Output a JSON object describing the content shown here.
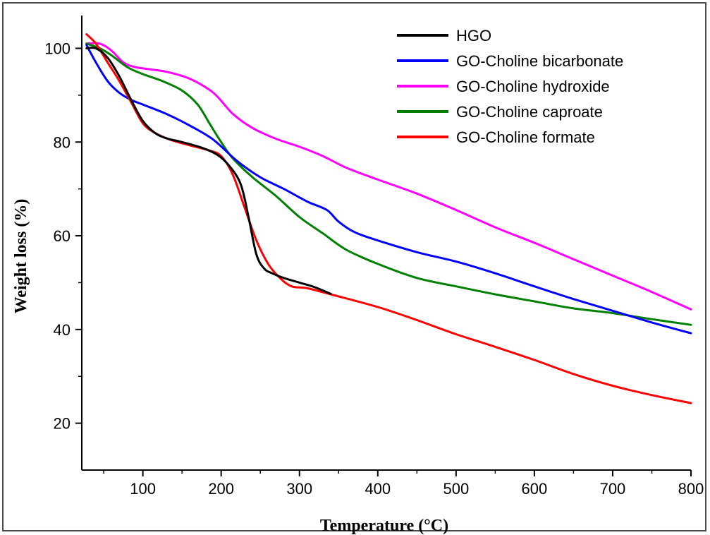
{
  "chart_data": {
    "type": "line",
    "title": "",
    "xlabel": "Temperature (°C)",
    "ylabel": "Weight loss (%)",
    "xlim": [
      22,
      800
    ],
    "ylim": [
      10,
      107
    ],
    "xticks": [
      100,
      200,
      300,
      400,
      500,
      600,
      700,
      800
    ],
    "yticks": [
      20,
      40,
      60,
      80,
      100
    ],
    "grid": false,
    "legend_position": "top-right",
    "series": [
      {
        "name": "HGO",
        "color": "#000000",
        "points": [
          [
            28,
            100
          ],
          [
            40,
            100
          ],
          [
            55,
            98
          ],
          [
            70,
            94
          ],
          [
            85,
            89
          ],
          [
            100,
            84.5
          ],
          [
            115,
            82
          ],
          [
            130,
            80.8
          ],
          [
            150,
            80
          ],
          [
            175,
            78.8
          ],
          [
            195,
            77.3
          ],
          [
            210,
            75
          ],
          [
            225,
            71
          ],
          [
            235,
            64
          ],
          [
            245,
            56
          ],
          [
            255,
            53
          ],
          [
            265,
            52
          ],
          [
            280,
            51
          ],
          [
            300,
            50
          ],
          [
            320,
            49
          ],
          [
            340,
            47.6
          ]
        ]
      },
      {
        "name": "GO-Choline bicarbonate",
        "color": "#0000ff",
        "points": [
          [
            28,
            100.7
          ],
          [
            40,
            97
          ],
          [
            55,
            93
          ],
          [
            70,
            90.5
          ],
          [
            85,
            89
          ],
          [
            100,
            88
          ],
          [
            130,
            86
          ],
          [
            160,
            83.5
          ],
          [
            190,
            80.5
          ],
          [
            220,
            76
          ],
          [
            250,
            72.5
          ],
          [
            280,
            70
          ],
          [
            310,
            67.3
          ],
          [
            335,
            65.5
          ],
          [
            350,
            63
          ],
          [
            370,
            60.8
          ],
          [
            400,
            59
          ],
          [
            450,
            56.5
          ],
          [
            500,
            54.5
          ],
          [
            550,
            52
          ],
          [
            600,
            49.2
          ],
          [
            650,
            46.5
          ],
          [
            700,
            44
          ],
          [
            750,
            41.5
          ],
          [
            800,
            39.2
          ]
        ]
      },
      {
        "name": "GO-Choline hydroxide",
        "color": "#ff00ff",
        "points": [
          [
            28,
            101
          ],
          [
            45,
            101
          ],
          [
            60,
            99.5
          ],
          [
            75,
            97
          ],
          [
            90,
            96
          ],
          [
            110,
            95.5
          ],
          [
            130,
            95
          ],
          [
            160,
            93.5
          ],
          [
            190,
            90.5
          ],
          [
            215,
            86
          ],
          [
            240,
            83
          ],
          [
            270,
            80.7
          ],
          [
            300,
            79
          ],
          [
            330,
            77
          ],
          [
            360,
            74.5
          ],
          [
            400,
            72
          ],
          [
            450,
            69
          ],
          [
            500,
            65.5
          ],
          [
            550,
            61.8
          ],
          [
            600,
            58.5
          ],
          [
            650,
            55
          ],
          [
            700,
            51.5
          ],
          [
            750,
            48
          ],
          [
            800,
            44.3
          ]
        ]
      },
      {
        "name": "GO-Choline caproate",
        "color": "#008000",
        "points": [
          [
            28,
            101
          ],
          [
            45,
            100
          ],
          [
            60,
            98.5
          ],
          [
            80,
            96
          ],
          [
            100,
            94.5
          ],
          [
            125,
            93
          ],
          [
            150,
            91
          ],
          [
            170,
            88
          ],
          [
            185,
            84
          ],
          [
            200,
            80
          ],
          [
            215,
            76.5
          ],
          [
            240,
            72.5
          ],
          [
            270,
            68.5
          ],
          [
            300,
            64
          ],
          [
            330,
            60.5
          ],
          [
            360,
            57
          ],
          [
            400,
            54
          ],
          [
            450,
            51
          ],
          [
            500,
            49.2
          ],
          [
            550,
            47.5
          ],
          [
            600,
            46
          ],
          [
            650,
            44.5
          ],
          [
            700,
            43.5
          ],
          [
            750,
            42.2
          ],
          [
            800,
            41
          ]
        ]
      },
      {
        "name": "GO-Choline formate",
        "color": "#ff0000",
        "points": [
          [
            28,
            103
          ],
          [
            40,
            101
          ],
          [
            55,
            97
          ],
          [
            70,
            93
          ],
          [
            85,
            88.5
          ],
          [
            100,
            84
          ],
          [
            115,
            82
          ],
          [
            135,
            80.5
          ],
          [
            160,
            79.3
          ],
          [
            185,
            78.2
          ],
          [
            200,
            77
          ],
          [
            215,
            73
          ],
          [
            230,
            66
          ],
          [
            245,
            59
          ],
          [
            260,
            54
          ],
          [
            275,
            51
          ],
          [
            290,
            49.2
          ],
          [
            310,
            48.8
          ],
          [
            340,
            47.5
          ],
          [
            400,
            44.8
          ],
          [
            450,
            42
          ],
          [
            500,
            39
          ],
          [
            550,
            36.3
          ],
          [
            600,
            33.5
          ],
          [
            650,
            30.5
          ],
          [
            700,
            28
          ],
          [
            750,
            26
          ],
          [
            800,
            24.3
          ]
        ]
      }
    ]
  }
}
